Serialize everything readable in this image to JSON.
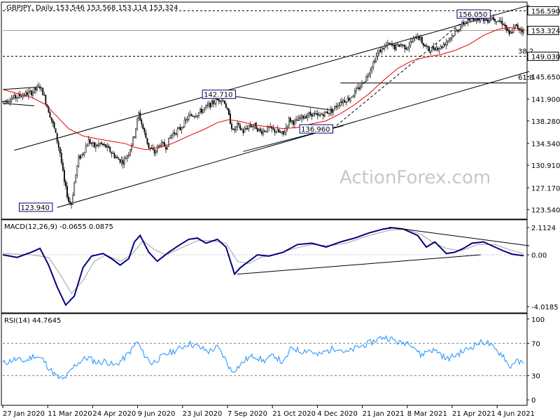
{
  "chart_data": [
    {
      "panel": "price",
      "type": "candlestick",
      "header": ".GBPJPY, Daily  153.546 153.568 153.114 153.324",
      "y_ticks": [
        123.54,
        127.17,
        130.91,
        134.54,
        138.28,
        141.9,
        145.65,
        149.03,
        153.324,
        156.59
      ],
      "y_tick_labels": [
        "123.540",
        "127.170",
        "130.910",
        "134.540",
        "138.280",
        "141.900",
        "145.650",
        "149.030",
        "153.324",
        "156.590"
      ],
      "ylim": [
        122.2,
        157.8
      ],
      "x_tick_labels": [
        "27 Jan 2020",
        "11 Mar 2020",
        "24 Apr 2020",
        "9 Jun 2020",
        "23 Jul 2020",
        "7 Sep 2020",
        "21 Oct 2020",
        "4 Dec 2020",
        "21 Jan 2021",
        "8 Mar 2021",
        "21 Apr 2021",
        "4 Jun 2021"
      ],
      "bars_shown": 365,
      "close_path": [
        [
          0,
          141.5
        ],
        [
          12,
          142.5
        ],
        [
          20,
          143.0
        ],
        [
          26,
          144.0
        ],
        [
          28,
          143.0
        ],
        [
          32,
          140.0
        ],
        [
          36,
          137.0
        ],
        [
          40,
          133.0
        ],
        [
          43,
          128.0
        ],
        [
          46,
          125.0
        ],
        [
          48,
          124.5
        ],
        [
          50,
          128.0
        ],
        [
          53,
          132.0
        ],
        [
          56,
          133.0
        ],
        [
          60,
          135.0
        ],
        [
          64,
          134.0
        ],
        [
          68,
          134.5
        ],
        [
          72,
          134.0
        ],
        [
          76,
          133.0
        ],
        [
          80,
          132.0
        ],
        [
          84,
          131.5
        ],
        [
          88,
          133.0
        ],
        [
          92,
          136.0
        ],
        [
          95,
          139.5
        ],
        [
          98,
          137.0
        ],
        [
          102,
          134.0
        ],
        [
          106,
          133.0
        ],
        [
          110,
          134.5
        ],
        [
          114,
          134.0
        ],
        [
          118,
          136.0
        ],
        [
          124,
          137.0
        ],
        [
          130,
          139.0
        ],
        [
          136,
          139.5
        ],
        [
          142,
          140.5
        ],
        [
          148,
          141.5
        ],
        [
          152,
          142.0
        ],
        [
          155,
          141.5
        ],
        [
          158,
          139.0
        ],
        [
          161,
          136.5
        ],
        [
          164,
          137.5
        ],
        [
          168,
          136.5
        ],
        [
          172,
          137.5
        ],
        [
          176,
          137.5
        ],
        [
          180,
          136.5
        ],
        [
          186,
          137.0
        ],
        [
          192,
          136.5
        ],
        [
          196,
          136.0
        ],
        [
          200,
          138.5
        ],
        [
          204,
          138.0
        ],
        [
          210,
          139.0
        ],
        [
          216,
          139.5
        ],
        [
          220,
          139.0
        ],
        [
          224,
          139.5
        ],
        [
          230,
          140.0
        ],
        [
          236,
          141.5
        ],
        [
          242,
          142.0
        ],
        [
          248,
          143.5
        ],
        [
          254,
          145.5
        ],
        [
          258,
          147.5
        ],
        [
          262,
          149.5
        ],
        [
          266,
          150.5
        ],
        [
          270,
          151.0
        ],
        [
          274,
          150.5
        ],
        [
          278,
          151.0
        ],
        [
          282,
          150.5
        ],
        [
          286,
          151.5
        ],
        [
          290,
          152.5
        ],
        [
          294,
          151.0
        ],
        [
          298,
          150.0
        ],
        [
          302,
          150.5
        ],
        [
          306,
          150.5
        ],
        [
          310,
          151.5
        ],
        [
          314,
          152.5
        ],
        [
          318,
          153.5
        ],
        [
          322,
          154.5
        ],
        [
          326,
          155.0
        ],
        [
          330,
          155.5
        ],
        [
          334,
          155.5
        ],
        [
          338,
          155.0
        ],
        [
          342,
          155.5
        ],
        [
          346,
          155.0
        ],
        [
          350,
          154.5
        ],
        [
          354,
          152.5
        ],
        [
          358,
          154.0
        ],
        [
          362,
          153.5
        ],
        [
          364,
          153.3
        ]
      ],
      "sma_path": [
        [
          0,
          143.5
        ],
        [
          20,
          142.2
        ],
        [
          30,
          141.0
        ],
        [
          36,
          139.5
        ],
        [
          46,
          137.0
        ],
        [
          56,
          135.8
        ],
        [
          66,
          135.3
        ],
        [
          76,
          134.9
        ],
        [
          86,
          134.5
        ],
        [
          92,
          133.9
        ],
        [
          100,
          133.5
        ],
        [
          110,
          133.9
        ],
        [
          118,
          134.5
        ],
        [
          130,
          135.8
        ],
        [
          140,
          136.8
        ],
        [
          150,
          138.0
        ],
        [
          158,
          138.5
        ],
        [
          166,
          138.2
        ],
        [
          176,
          137.6
        ],
        [
          186,
          137.3
        ],
        [
          196,
          137.0
        ],
        [
          206,
          137.2
        ],
        [
          216,
          137.8
        ],
        [
          226,
          138.3
        ],
        [
          236,
          139.5
        ],
        [
          246,
          141.0
        ],
        [
          256,
          142.8
        ],
        [
          266,
          145.0
        ],
        [
          276,
          147.0
        ],
        [
          286,
          148.3
        ],
        [
          296,
          148.9
        ],
        [
          306,
          149.3
        ],
        [
          316,
          150.0
        ],
        [
          326,
          151.0
        ],
        [
          336,
          152.5
        ],
        [
          346,
          153.5
        ],
        [
          354,
          153.8
        ],
        [
          364,
          153.5
        ]
      ],
      "trendlines": [
        {
          "name": "channel-upper",
          "from": [
            8,
            133.4
          ],
          "to": [
            368,
            157.5
          ],
          "color": "#000000"
        },
        {
          "name": "channel-lower",
          "from": [
            38,
            123.9
          ],
          "to": [
            368,
            146.5
          ],
          "color": "#000000"
        },
        {
          "name": "triangle-top",
          "from": [
            152,
            142.7
          ],
          "to": [
            232,
            140.0
          ],
          "color": "#000000"
        },
        {
          "name": "triangle-bottom",
          "from": [
            168,
            133.2
          ],
          "to": [
            238,
            137.5
          ],
          "color": "#000000"
        },
        {
          "name": "dashed-trend",
          "from": [
            228,
            136.5
          ],
          "to": [
            320,
            154.5
          ],
          "color": "#000000",
          "dashed": true
        },
        {
          "name": "range-top",
          "from": [
            0,
            143.5
          ],
          "to": [
            24,
            143.9
          ],
          "color": "#000000"
        },
        {
          "name": "range-bottom",
          "from": [
            0,
            141.2
          ],
          "to": [
            22,
            140.8
          ],
          "color": "#000000"
        }
      ],
      "hlines": [
        {
          "value": 156.59,
          "dashed": true,
          "color": "#000000",
          "tag": "156.590"
        },
        {
          "value": 153.324,
          "dashed": false,
          "color": "#a0a0a0",
          "tag": "153.324"
        },
        {
          "value": 149.03,
          "dashed": true,
          "color": "#000000",
          "tag": "149.030"
        },
        {
          "value": 144.6,
          "dashed": false,
          "color": "#000000",
          "tag": "",
          "from_x": 236
        }
      ],
      "annotations": [
        {
          "text": "142.710",
          "x": 140,
          "y": 142.71,
          "boxed": true
        },
        {
          "text": "123.940",
          "x": 12,
          "y": 123.94,
          "boxed": true
        },
        {
          "text": "136.960",
          "x": 208,
          "y": 136.96,
          "boxed": true
        },
        {
          "text": "156.050",
          "x": 318,
          "y": 156.05,
          "boxed": true
        },
        {
          "text": "38.2",
          "x": 364,
          "y": 149.5,
          "boxed": false
        },
        {
          "text": "61.8",
          "x": 364,
          "y": 145.1,
          "boxed": false
        }
      ],
      "watermark": "ActionForex.com",
      "colors": {
        "candle_up": "#ffffff",
        "candle_down": "#000000",
        "candle_stroke": "#000000",
        "sma": "#e60000",
        "tag_bg": "#ffffff"
      }
    },
    {
      "panel": "macd",
      "type": "line",
      "header": "MACD(12,26,9) -0.0655 0.0875",
      "y_ticks": [
        2.1124,
        0.0,
        -4.0185
      ],
      "y_tick_labels": [
        "2.1124",
        "0.00",
        "-4.0185"
      ],
      "ylim": [
        -4.4,
        2.5
      ],
      "macd_path": [
        [
          0,
          0.0
        ],
        [
          10,
          -0.2
        ],
        [
          20,
          0.2
        ],
        [
          26,
          0.5
        ],
        [
          32,
          -0.8
        ],
        [
          38,
          -2.5
        ],
        [
          44,
          -3.9
        ],
        [
          50,
          -3.2
        ],
        [
          56,
          -1.0
        ],
        [
          62,
          -0.1
        ],
        [
          70,
          0.1
        ],
        [
          76,
          -0.3
        ],
        [
          82,
          -0.8
        ],
        [
          88,
          -0.3
        ],
        [
          92,
          1.0
        ],
        [
          96,
          1.5
        ],
        [
          102,
          0.2
        ],
        [
          108,
          -0.5
        ],
        [
          116,
          0.2
        ],
        [
          124,
          0.8
        ],
        [
          130,
          1.2
        ],
        [
          136,
          1.3
        ],
        [
          142,
          0.9
        ],
        [
          150,
          1.2
        ],
        [
          156,
          0.6
        ],
        [
          162,
          -1.5
        ],
        [
          166,
          -1.0
        ],
        [
          172,
          -0.5
        ],
        [
          178,
          0.0
        ],
        [
          186,
          -0.1
        ],
        [
          196,
          0.2
        ],
        [
          206,
          0.8
        ],
        [
          216,
          0.9
        ],
        [
          226,
          0.6
        ],
        [
          236,
          1.0
        ],
        [
          246,
          1.3
        ],
        [
          256,
          1.7
        ],
        [
          266,
          2.0
        ],
        [
          272,
          2.1
        ],
        [
          280,
          2.0
        ],
        [
          290,
          1.5
        ],
        [
          296,
          0.6
        ],
        [
          302,
          1.0
        ],
        [
          310,
          0.1
        ],
        [
          316,
          0.2
        ],
        [
          322,
          0.5
        ],
        [
          328,
          0.9
        ],
        [
          336,
          1.0
        ],
        [
          344,
          0.6
        ],
        [
          350,
          0.3
        ],
        [
          356,
          0.05
        ],
        [
          364,
          -0.07
        ]
      ],
      "signal_path": [
        [
          0,
          0.1
        ],
        [
          20,
          0.0
        ],
        [
          32,
          -0.2
        ],
        [
          40,
          -1.5
        ],
        [
          48,
          -3.0
        ],
        [
          56,
          -2.0
        ],
        [
          64,
          -0.5
        ],
        [
          72,
          0.0
        ],
        [
          82,
          -0.5
        ],
        [
          90,
          0.0
        ],
        [
          98,
          1.1
        ],
        [
          106,
          0.4
        ],
        [
          114,
          0.0
        ],
        [
          124,
          0.5
        ],
        [
          136,
          1.1
        ],
        [
          146,
          1.1
        ],
        [
          156,
          0.9
        ],
        [
          164,
          -0.5
        ],
        [
          172,
          -0.7
        ],
        [
          180,
          -0.2
        ],
        [
          190,
          0.0
        ],
        [
          204,
          0.5
        ],
        [
          216,
          0.8
        ],
        [
          228,
          0.7
        ],
        [
          240,
          0.9
        ],
        [
          256,
          1.5
        ],
        [
          270,
          1.9
        ],
        [
          282,
          2.0
        ],
        [
          292,
          1.6
        ],
        [
          300,
          1.0
        ],
        [
          310,
          0.5
        ],
        [
          320,
          0.3
        ],
        [
          332,
          0.8
        ],
        [
          344,
          0.8
        ],
        [
          354,
          0.4
        ],
        [
          364,
          0.09
        ]
      ],
      "trendlines": [
        {
          "name": "macd-support",
          "from": [
            164,
            -1.5
          ],
          "to": [
            334,
            0.0
          ]
        },
        {
          "name": "macd-resistance",
          "from": [
            270,
            2.15
          ],
          "to": [
            368,
            0.7
          ]
        }
      ],
      "colors": {
        "macd": "#000080",
        "signal": "#a0a0a0"
      }
    },
    {
      "panel": "rsi",
      "type": "line",
      "header": "RSI(14) 44.7645",
      "y_ticks": [
        100,
        70,
        30,
        0
      ],
      "y_tick_labels": [
        "100",
        "70",
        "30",
        "0"
      ],
      "ylim": [
        -5,
        105
      ],
      "levels": [
        70,
        30
      ],
      "rsi_path": [
        [
          0,
          45
        ],
        [
          8,
          50
        ],
        [
          16,
          48
        ],
        [
          22,
          55
        ],
        [
          28,
          50
        ],
        [
          32,
          40
        ],
        [
          38,
          28
        ],
        [
          42,
          25
        ],
        [
          46,
          32
        ],
        [
          50,
          42
        ],
        [
          56,
          50
        ],
        [
          60,
          52
        ],
        [
          66,
          46
        ],
        [
          72,
          48
        ],
        [
          78,
          42
        ],
        [
          84,
          50
        ],
        [
          90,
          62
        ],
        [
          94,
          72
        ],
        [
          98,
          58
        ],
        [
          104,
          45
        ],
        [
          110,
          52
        ],
        [
          116,
          58
        ],
        [
          122,
          62
        ],
        [
          130,
          70
        ],
        [
          136,
          66
        ],
        [
          144,
          60
        ],
        [
          150,
          65
        ],
        [
          154,
          55
        ],
        [
          160,
          35
        ],
        [
          164,
          40
        ],
        [
          170,
          50
        ],
        [
          176,
          55
        ],
        [
          182,
          48
        ],
        [
          190,
          55
        ],
        [
          196,
          45
        ],
        [
          202,
          65
        ],
        [
          208,
          60
        ],
        [
          214,
          62
        ],
        [
          220,
          55
        ],
        [
          226,
          60
        ],
        [
          234,
          65
        ],
        [
          240,
          58
        ],
        [
          248,
          65
        ],
        [
          256,
          70
        ],
        [
          262,
          75
        ],
        [
          266,
          78
        ],
        [
          272,
          75
        ],
        [
          278,
          70
        ],
        [
          284,
          72
        ],
        [
          288,
          65
        ],
        [
          292,
          55
        ],
        [
          298,
          62
        ],
        [
          304,
          60
        ],
        [
          310,
          50
        ],
        [
          316,
          55
        ],
        [
          324,
          62
        ],
        [
          332,
          70
        ],
        [
          338,
          72
        ],
        [
          344,
          62
        ],
        [
          350,
          55
        ],
        [
          354,
          40
        ],
        [
          358,
          48
        ],
        [
          364,
          44.76
        ]
      ],
      "colors": {
        "rsi": "#1e90ff",
        "level": "#808080"
      }
    }
  ]
}
